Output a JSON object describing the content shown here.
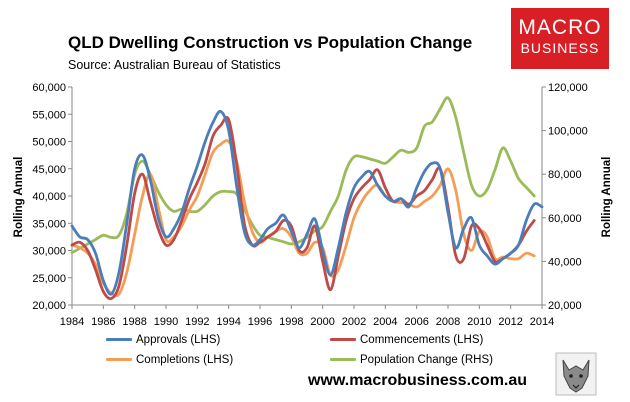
{
  "header": {
    "title": "QLD Dwelling Construction vs Population Change",
    "subtitle": "Source: Australian Bureau of Statistics"
  },
  "logo": {
    "line1": "MACRO",
    "line2": "BUSINESS",
    "color": "#d81f26"
  },
  "website": "www.macrobusiness.com.au",
  "chart_data": {
    "type": "line",
    "ylabel": "Rolling Annual",
    "y2label": "Rolling Annual",
    "ylim": [
      20000,
      60000
    ],
    "y2lim": [
      20000,
      120000
    ],
    "xlim": [
      1984,
      2014
    ],
    "x_ticks": [
      "1984",
      "1986",
      "1988",
      "1990",
      "1992",
      "1994",
      "1996",
      "1998",
      "2000",
      "2002",
      "2004",
      "2006",
      "2008",
      "2010",
      "2012",
      "2014"
    ],
    "y_ticks": [
      "20,000",
      "25,000",
      "30,000",
      "35,000",
      "40,000",
      "45,000",
      "50,000",
      "55,000",
      "60,000"
    ],
    "y2_ticks": [
      "20,000",
      "40,000",
      "60,000",
      "80,000",
      "100,000",
      "120,000"
    ],
    "grid": false,
    "legend_placement": "bottom",
    "series": [
      {
        "name": "Approvals (LHS)",
        "color": "#4a7ebb",
        "axis": "left",
        "x": [
          1984.0,
          1984.5,
          1985.0,
          1985.5,
          1986.0,
          1986.5,
          1987.0,
          1987.5,
          1988.0,
          1988.5,
          1989.0,
          1989.5,
          1990.0,
          1990.5,
          1991.0,
          1991.5,
          1992.0,
          1992.5,
          1993.0,
          1993.5,
          1994.0,
          1994.5,
          1995.0,
          1995.5,
          1996.0,
          1996.5,
          1997.0,
          1997.5,
          1998.0,
          1998.5,
          1999.0,
          1999.5,
          2000.0,
          2000.5,
          2001.0,
          2001.5,
          2002.0,
          2002.5,
          2003.0,
          2003.5,
          2004.0,
          2004.5,
          2005.0,
          2005.5,
          2006.0,
          2006.5,
          2007.0,
          2007.5,
          2008.0,
          2008.5,
          2009.0,
          2009.5,
          2010.0,
          2010.5,
          2011.0,
          2011.5,
          2012.0,
          2012.5,
          2013.0,
          2013.5,
          2014.0
        ],
        "y": [
          34500,
          32500,
          32000,
          29500,
          24500,
          22000,
          26000,
          35000,
          45000,
          47500,
          43000,
          36000,
          32500,
          34000,
          37000,
          41500,
          45500,
          50000,
          53500,
          55500,
          52000,
          42000,
          33500,
          31000,
          32000,
          34000,
          35000,
          36500,
          33500,
          30500,
          33000,
          35800,
          30000,
          25500,
          30500,
          37000,
          41500,
          43500,
          44500,
          42000,
          40000,
          39000,
          39500,
          38000,
          41500,
          44500,
          46000,
          45000,
          37000,
          30500,
          34000,
          36000,
          31000,
          29000,
          27500,
          28500,
          29500,
          31000,
          35500,
          38500,
          38000
        ]
      },
      {
        "name": "Commencements (LHS)",
        "color": "#be4b48",
        "axis": "left",
        "x": [
          1984.0,
          1984.5,
          1985.0,
          1985.5,
          1986.0,
          1986.5,
          1987.0,
          1987.5,
          1988.0,
          1988.5,
          1989.0,
          1989.5,
          1990.0,
          1990.5,
          1991.0,
          1991.5,
          1992.0,
          1992.5,
          1993.0,
          1993.5,
          1994.0,
          1994.5,
          1995.0,
          1995.5,
          1996.0,
          1996.5,
          1997.0,
          1997.5,
          1998.0,
          1998.5,
          1999.0,
          1999.5,
          2000.0,
          2000.5,
          2001.0,
          2001.5,
          2002.0,
          2002.5,
          2003.0,
          2003.5,
          2004.0,
          2004.5,
          2005.0,
          2005.5,
          2006.0,
          2006.5,
          2007.0,
          2007.5,
          2008.0,
          2008.5,
          2009.0,
          2009.5,
          2010.0,
          2010.5,
          2011.0,
          2011.5,
          2012.0,
          2012.5,
          2013.0,
          2013.5
        ],
        "y": [
          31000,
          31500,
          30000,
          26500,
          22500,
          21200,
          23500,
          31000,
          40500,
          44000,
          39000,
          34000,
          31000,
          32000,
          35500,
          39500,
          42500,
          46000,
          51000,
          53000,
          54000,
          46000,
          35000,
          31000,
          31500,
          32500,
          33500,
          35500,
          34500,
          30000,
          30500,
          34500,
          28000,
          22800,
          29000,
          35500,
          39500,
          41500,
          43000,
          44800,
          41500,
          39000,
          39500,
          38500,
          40000,
          41000,
          43000,
          45000,
          38000,
          29000,
          28500,
          34500,
          34000,
          31000,
          28000,
          28500,
          29500,
          31000,
          33500,
          35500
        ]
      },
      {
        "name": "Completions (LHS)",
        "color": "#f59d56",
        "axis": "left",
        "x": [
          1984.0,
          1984.5,
          1985.0,
          1985.5,
          1986.0,
          1986.5,
          1987.0,
          1987.5,
          1988.0,
          1988.5,
          1989.0,
          1989.5,
          1990.0,
          1990.5,
          1991.0,
          1991.5,
          1992.0,
          1992.5,
          1993.0,
          1993.5,
          1994.0,
          1994.5,
          1995.0,
          1995.5,
          1996.0,
          1996.5,
          1997.0,
          1997.5,
          1998.0,
          1998.5,
          1999.0,
          1999.5,
          2000.0,
          2000.5,
          2001.0,
          2001.5,
          2002.0,
          2002.5,
          2003.0,
          2003.5,
          2004.0,
          2004.5,
          2005.0,
          2005.5,
          2006.0,
          2006.5,
          2007.0,
          2007.5,
          2008.0,
          2008.5,
          2009.0,
          2009.5,
          2010.0,
          2010.5,
          2011.0,
          2011.5,
          2012.0,
          2012.5,
          2013.0,
          2013.5
        ],
        "y": [
          31000,
          30500,
          29500,
          27500,
          24000,
          22200,
          22000,
          26000,
          33000,
          40000,
          44000,
          38000,
          32000,
          32500,
          34500,
          37500,
          40000,
          44000,
          48000,
          49500,
          50000,
          46500,
          39000,
          33500,
          31500,
          32500,
          33500,
          34000,
          32500,
          29500,
          29500,
          31500,
          30500,
          25500,
          26500,
          31000,
          36000,
          39000,
          41000,
          42000,
          40000,
          39000,
          38800,
          38500,
          38000,
          39000,
          40000,
          42000,
          45000,
          41000,
          33000,
          30000,
          33500,
          32500,
          28500,
          28800,
          28500,
          28500,
          29500,
          29000
        ]
      },
      {
        "name": "Population Change (RHS)",
        "color": "#9bbb59",
        "axis": "right",
        "x": [
          1984.0,
          1984.5,
          1985.0,
          1985.5,
          1986.0,
          1986.5,
          1987.0,
          1987.5,
          1988.0,
          1988.5,
          1989.0,
          1989.5,
          1990.0,
          1990.5,
          1991.0,
          1991.5,
          1992.0,
          1992.5,
          1993.0,
          1993.5,
          1994.0,
          1994.5,
          1995.0,
          1995.5,
          1996.0,
          1996.5,
          1997.0,
          1997.5,
          1998.0,
          1998.5,
          1999.0,
          1999.5,
          2000.0,
          2000.5,
          2001.0,
          2001.5,
          2002.0,
          2002.5,
          2003.0,
          2003.5,
          2004.0,
          2004.5,
          2005.0,
          2005.5,
          2006.0,
          2006.5,
          2007.0,
          2007.5,
          2008.0,
          2008.5,
          2009.0,
          2009.5,
          2010.0,
          2010.5,
          2011.0,
          2011.5,
          2012.0,
          2012.5,
          2013.0,
          2013.5
        ],
        "y": [
          44000,
          46000,
          48000,
          50000,
          52000,
          51000,
          52000,
          62000,
          80000,
          86000,
          80000,
          72000,
          66000,
          63000,
          64000,
          63000,
          63000,
          66000,
          70000,
          72000,
          72000,
          71000,
          64000,
          57000,
          52000,
          51000,
          50000,
          49000,
          48000,
          49000,
          51000,
          54000,
          56000,
          63000,
          70000,
          82000,
          88000,
          88000,
          87000,
          86000,
          85000,
          88000,
          91000,
          90000,
          92000,
          102000,
          104000,
          110000,
          115000,
          106000,
          90000,
          75000,
          70000,
          73000,
          82000,
          92000,
          86000,
          78000,
          74000,
          70000
        ]
      }
    ]
  }
}
